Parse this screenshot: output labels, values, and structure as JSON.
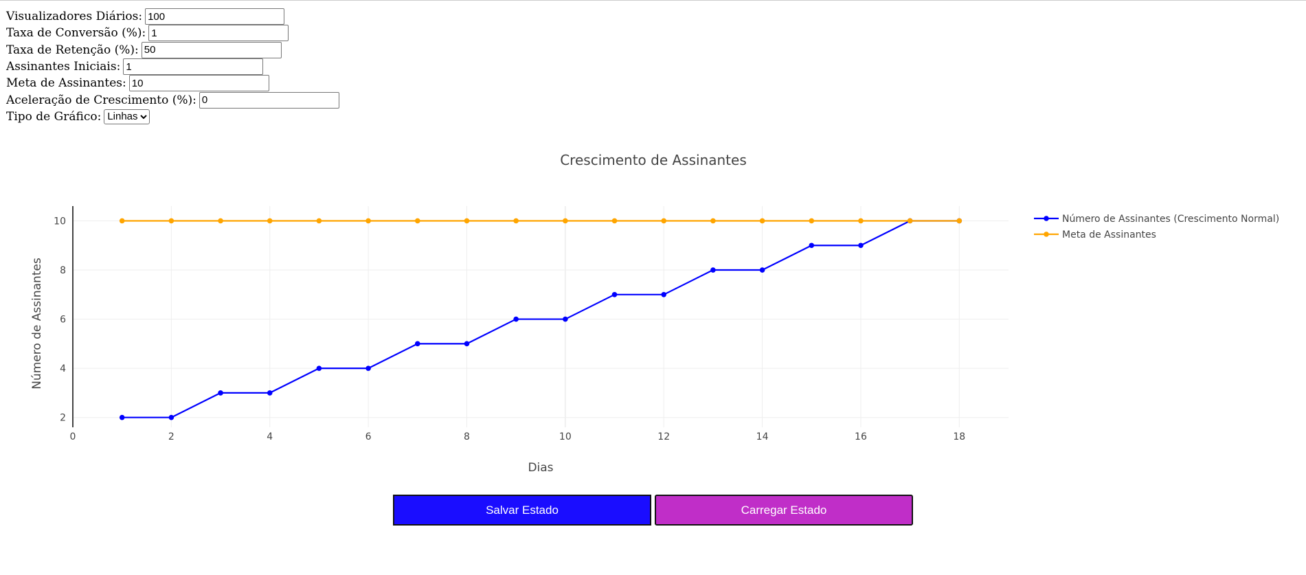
{
  "form": {
    "fields": [
      {
        "label": "Visualizadores Diários:",
        "value": "100"
      },
      {
        "label": "Taxa de Conversão (%):",
        "value": "1"
      },
      {
        "label": "Taxa de Retenção (%):",
        "value": "50"
      },
      {
        "label": "Assinantes Iniciais:",
        "value": "1"
      },
      {
        "label": "Meta de Assinantes:",
        "value": "10"
      },
      {
        "label": "Aceleração de Crescimento (%):",
        "value": "0"
      }
    ],
    "chart_type": {
      "label": "Tipo de Gráfico:",
      "selected": "Linhas"
    }
  },
  "buttons": {
    "save": "Salvar Estado",
    "load": "Carregar Estado"
  },
  "chart_data": {
    "type": "line",
    "title": "Crescimento de Assinantes",
    "xlabel": "Dias",
    "ylabel": "Número de Assinantes",
    "xlim": [
      0,
      19
    ],
    "ylim": [
      1.6,
      10.6
    ],
    "x_ticks": [
      0,
      2,
      4,
      6,
      8,
      10,
      12,
      14,
      16,
      18
    ],
    "y_ticks": [
      2,
      4,
      6,
      8,
      10
    ],
    "grid": true,
    "legend_position": "top-right",
    "x": [
      1,
      2,
      3,
      4,
      5,
      6,
      7,
      8,
      9,
      10,
      11,
      12,
      13,
      14,
      15,
      16,
      17,
      18
    ],
    "series": [
      {
        "name": "Número de Assinantes (Crescimento Normal)",
        "color": "#0000ff",
        "values": [
          2,
          2,
          3,
          3,
          4,
          4,
          5,
          5,
          6,
          6,
          7,
          7,
          8,
          8,
          9,
          9,
          10,
          10
        ]
      },
      {
        "name": "Meta de Assinantes",
        "color": "#ffa500",
        "values": [
          10,
          10,
          10,
          10,
          10,
          10,
          10,
          10,
          10,
          10,
          10,
          10,
          10,
          10,
          10,
          10,
          10,
          10
        ]
      }
    ]
  }
}
